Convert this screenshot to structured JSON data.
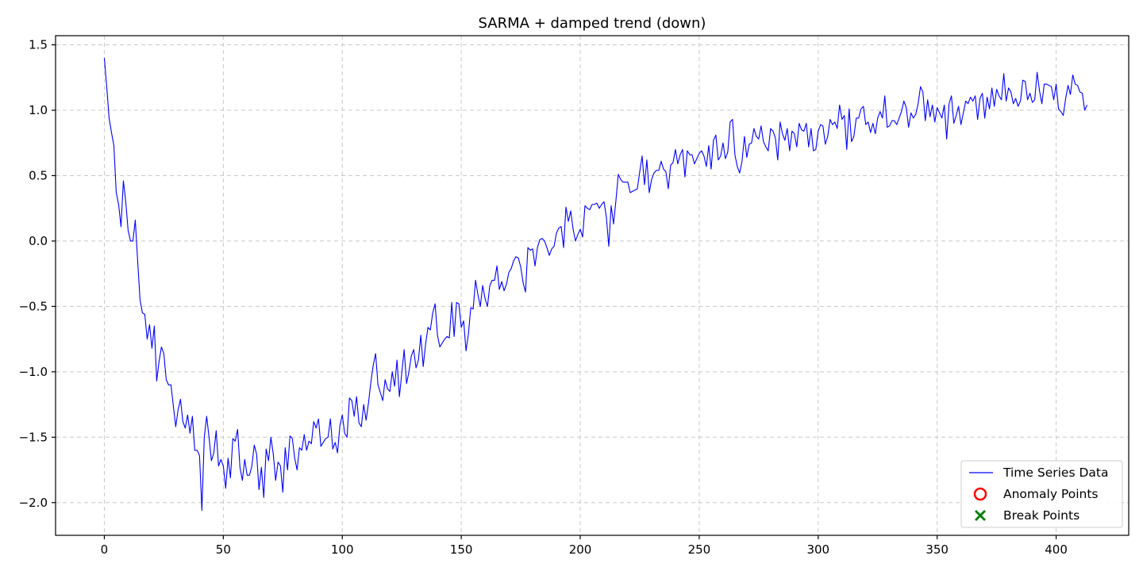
{
  "chart_data": {
    "type": "line",
    "title": "SARMA + damped trend (down)",
    "xlabel": "",
    "ylabel": "",
    "xlim": [
      -20.5,
      430.5
    ],
    "ylim": [
      -2.25,
      1.57
    ],
    "xticks": [
      0,
      50,
      100,
      150,
      200,
      250,
      300,
      350,
      400
    ],
    "yticks": [
      -2.0,
      -1.5,
      -1.0,
      -0.5,
      0.0,
      0.5,
      1.0,
      1.5
    ],
    "xtick_labels": [
      "0",
      "50",
      "100",
      "150",
      "200",
      "250",
      "300",
      "350",
      "400"
    ],
    "ytick_labels": [
      "−2.0",
      "−1.5",
      "−1.0",
      "−0.5",
      "0.0",
      "0.5",
      "1.0",
      "1.5"
    ],
    "grid": true,
    "legend_position": "lower-right",
    "legend": [
      {
        "label": "Time Series Data",
        "marker": "line",
        "color": "#0000ff"
      },
      {
        "label": "Anomaly Points",
        "marker": "circle",
        "color": "#ff0000"
      },
      {
        "label": "Break Points",
        "marker": "x",
        "color": "#008000"
      }
    ],
    "series": [
      {
        "name": "Time Series Data",
        "color": "#0000ff",
        "x_start": 0,
        "x_step": 1,
        "values": [
          1.4,
          1.18,
          0.94,
          0.83,
          0.73,
          0.37,
          0.28,
          0.11,
          0.46,
          0.3,
          0.08,
          0.0,
          0.0,
          0.16,
          -0.15,
          -0.45,
          -0.55,
          -0.56,
          -0.75,
          -0.64,
          -0.82,
          -0.65,
          -1.07,
          -0.92,
          -0.81,
          -0.86,
          -1.06,
          -1.1,
          -1.1,
          -1.26,
          -1.42,
          -1.29,
          -1.21,
          -1.38,
          -1.43,
          -1.33,
          -1.47,
          -1.34,
          -1.6,
          -1.6,
          -1.64,
          -2.06,
          -1.5,
          -1.34,
          -1.5,
          -1.68,
          -1.62,
          -1.45,
          -1.72,
          -1.67,
          -1.72,
          -1.89,
          -1.66,
          -1.81,
          -1.51,
          -1.53,
          -1.44,
          -1.73,
          -1.83,
          -1.67,
          -1.79,
          -1.79,
          -1.72,
          -1.56,
          -1.63,
          -1.9,
          -1.73,
          -1.96,
          -1.59,
          -1.68,
          -1.5,
          -1.63,
          -1.83,
          -1.69,
          -1.72,
          -1.92,
          -1.58,
          -1.75,
          -1.49,
          -1.51,
          -1.66,
          -1.75,
          -1.58,
          -1.6,
          -1.48,
          -1.6,
          -1.53,
          -1.55,
          -1.38,
          -1.43,
          -1.36,
          -1.57,
          -1.54,
          -1.51,
          -1.5,
          -1.36,
          -1.59,
          -1.54,
          -1.62,
          -1.41,
          -1.33,
          -1.47,
          -1.5,
          -1.2,
          -1.22,
          -1.34,
          -1.19,
          -1.39,
          -1.42,
          -1.25,
          -1.37,
          -1.24,
          -1.08,
          -0.95,
          -0.86,
          -1.1,
          -1.16,
          -1.22,
          -1.06,
          -1.13,
          -1.15,
          -1.0,
          -1.11,
          -0.91,
          -1.19,
          -1.01,
          -0.83,
          -1.09,
          -1.0,
          -0.88,
          -0.83,
          -0.97,
          -0.91,
          -0.72,
          -0.96,
          -0.79,
          -0.66,
          -0.68,
          -0.55,
          -0.48,
          -0.72,
          -0.81,
          -0.78,
          -0.75,
          -0.73,
          -0.74,
          -0.47,
          -0.73,
          -0.47,
          -0.48,
          -0.66,
          -0.61,
          -0.84,
          -0.71,
          -0.51,
          -0.52,
          -0.3,
          -0.41,
          -0.5,
          -0.34,
          -0.44,
          -0.5,
          -0.34,
          -0.3,
          -0.3,
          -0.19,
          -0.37,
          -0.31,
          -0.38,
          -0.33,
          -0.24,
          -0.21,
          -0.15,
          -0.12,
          -0.13,
          -0.2,
          -0.32,
          -0.39,
          -0.05,
          -0.07,
          -0.06,
          -0.19,
          -0.05,
          0.01,
          0.02,
          0.0,
          -0.05,
          -0.11,
          -0.06,
          -0.04,
          0.06,
          0.1,
          0.11,
          -0.05,
          0.26,
          0.15,
          0.23,
          0.09,
          0.0,
          0.05,
          0.09,
          0.03,
          0.27,
          0.25,
          0.24,
          0.28,
          0.28,
          0.29,
          0.25,
          0.28,
          0.3,
          0.18,
          -0.04,
          0.27,
          0.13,
          0.31,
          0.51,
          0.47,
          0.45,
          0.45,
          0.45,
          0.37,
          0.38,
          0.39,
          0.4,
          0.53,
          0.65,
          0.43,
          0.62,
          0.37,
          0.47,
          0.52,
          0.54,
          0.54,
          0.61,
          0.55,
          0.53,
          0.4,
          0.58,
          0.6,
          0.7,
          0.59,
          0.66,
          0.7,
          0.49,
          0.69,
          0.66,
          0.66,
          0.59,
          0.63,
          0.67,
          0.69,
          0.65,
          0.57,
          0.73,
          0.55,
          0.77,
          0.81,
          0.62,
          0.65,
          0.75,
          0.63,
          0.68,
          0.91,
          0.93,
          0.66,
          0.57,
          0.52,
          0.61,
          0.8,
          0.64,
          0.74,
          0.75,
          0.86,
          0.8,
          0.78,
          0.88,
          0.76,
          0.72,
          0.69,
          0.86,
          0.84,
          0.79,
          0.62,
          0.91,
          0.82,
          0.77,
          0.86,
          0.69,
          0.84,
          0.82,
          0.72,
          0.9,
          0.85,
          0.84,
          0.9,
          0.72,
          0.86,
          0.69,
          0.7,
          0.84,
          0.89,
          0.88,
          0.74,
          0.8,
          0.93,
          0.89,
          0.91,
          0.86,
          1.04,
          0.93,
          0.96,
          0.7,
          1.01,
          0.76,
          0.8,
          0.94,
          0.94,
          1.01,
          1.03,
          0.89,
          0.91,
          0.83,
          0.9,
          0.82,
          0.94,
          0.99,
          0.94,
          1.11,
          0.87,
          0.88,
          0.92,
          0.92,
          0.89,
          0.94,
          0.99,
          1.07,
          1.02,
          0.87,
          0.98,
          0.94,
          0.97,
          1.05,
          1.18,
          1.14,
          0.92,
          1.08,
          0.95,
          1.04,
          0.91,
          1.02,
          0.98,
          0.94,
          1.04,
          0.78,
          1.05,
          1.11,
          0.9,
          0.96,
          1.03,
          0.89,
          0.98,
          1.07,
          1.05,
          1.1,
          1.07,
          1.11,
          0.93,
          1.09,
          1.13,
          0.94,
          1.1,
          1.01,
          1.17,
          1.03,
          1.16,
          1.11,
          1.08,
          1.28,
          1.07,
          1.17,
          1.14,
          1.05,
          1.09,
          1.03,
          1.07,
          1.23,
          1.22,
          1.08,
          1.13,
          1.06,
          1.08,
          1.29,
          1.15,
          1.05,
          1.2,
          1.2,
          1.19,
          1.18,
          1.08,
          1.2,
          1.01,
          0.99,
          0.96,
          1.09,
          1.19,
          1.12,
          1.27,
          1.2,
          1.19,
          1.14,
          1.13,
          1.0,
          1.04
        ]
      }
    ]
  }
}
